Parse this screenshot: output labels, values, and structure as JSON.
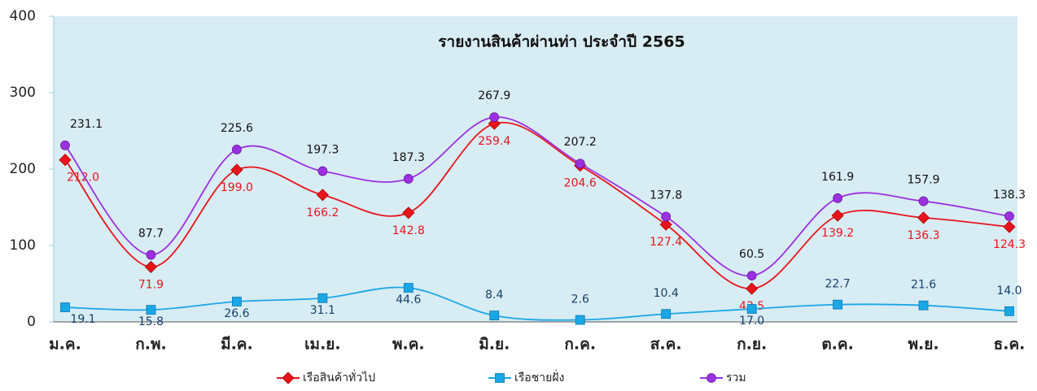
{
  "chart_data": {
    "type": "line",
    "title": "รายงานสินค้าผ่านท่า ประจำปี 2565",
    "categories": [
      "ม.ค.",
      "ก.พ.",
      "มี.ค.",
      "เม.ย.",
      "พ.ค.",
      "มิ.ย.",
      "ก.ค.",
      "ส.ค.",
      "ก.ย.",
      "ต.ค.",
      "พ.ย.",
      "ธ.ค."
    ],
    "series": [
      {
        "name": "เรือสินค้าทั่วไป",
        "color": "#e8141b",
        "marker": "diamond",
        "values": [
          212.0,
          71.9,
          199.0,
          166.2,
          142.8,
          259.4,
          204.6,
          127.4,
          43.5,
          139.2,
          136.3,
          124.3
        ],
        "value_labels": [
          "212.0",
          "71.9",
          "199.0",
          "166.2",
          "142.8",
          "259.4",
          "204.6",
          "127.4",
          "43.5",
          "139.2",
          "136.3",
          "124.3"
        ]
      },
      {
        "name": "เรือชายฝั่ง",
        "color": "#1aa7e6",
        "marker": "square",
        "values": [
          19.1,
          15.8,
          26.6,
          31.1,
          44.6,
          8.4,
          2.6,
          10.4,
          17.0,
          22.7,
          21.6,
          14.0
        ],
        "value_labels": [
          "19.1",
          "15.8",
          "26.6",
          "31.1",
          "44.6",
          "8.4",
          "2.6",
          "10.4",
          "17.0",
          "22.7",
          "21.6",
          "14.0"
        ]
      },
      {
        "name": "รวม",
        "color": "#9b30e0",
        "marker": "circle",
        "values": [
          231.1,
          87.7,
          225.6,
          197.3,
          187.3,
          267.9,
          207.2,
          137.8,
          60.5,
          161.9,
          157.9,
          138.3
        ],
        "value_labels": [
          "231.1",
          "87.7",
          "225.6",
          "197.3",
          "187.3",
          "267.9",
          "207.2",
          "137.8",
          "60.5",
          "161.9",
          "157.9",
          "138.3"
        ]
      }
    ],
    "ylim": [
      0,
      400
    ],
    "yticks": [
      0,
      100,
      200,
      300,
      400
    ],
    "legend": "bottom"
  }
}
